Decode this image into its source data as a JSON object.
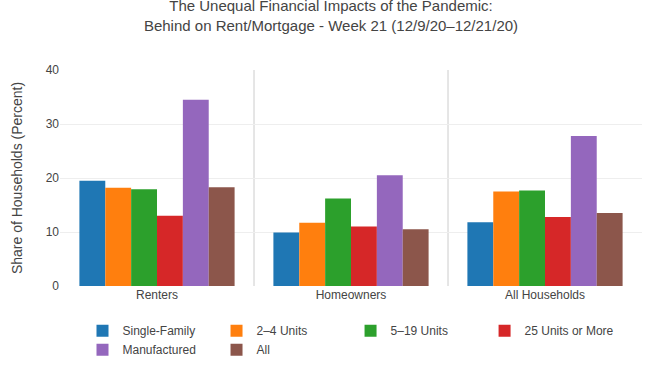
{
  "chart_data": {
    "type": "bar",
    "title": "The Unequal Financial Impacts of the Pandemic:",
    "subtitle": "Behind on Rent/Mortgage - Week 21 (12/9/20–12/21/20)",
    "ylabel": "Share of Households (Percent)",
    "categories": [
      "Renters",
      "Homeowners",
      "All Households"
    ],
    "series": [
      {
        "name": "Single-Family",
        "values": [
          19.5,
          9.9,
          11.8
        ]
      },
      {
        "name": "2–4 Units",
        "values": [
          18.2,
          11.7,
          17.5
        ]
      },
      {
        "name": "5–19 Units",
        "values": [
          17.9,
          16.2,
          17.7
        ]
      },
      {
        "name": "25 Units or More",
        "values": [
          13.0,
          11.0,
          12.8
        ]
      },
      {
        "name": "Manufactured",
        "values": [
          34.5,
          20.5,
          27.8
        ]
      },
      {
        "name": "All",
        "values": [
          18.3,
          10.5,
          13.5
        ]
      }
    ],
    "ylim": [
      0,
      40
    ],
    "yticks": [
      0,
      10,
      20,
      30,
      40
    ],
    "grid": true,
    "legend": "bottom"
  }
}
